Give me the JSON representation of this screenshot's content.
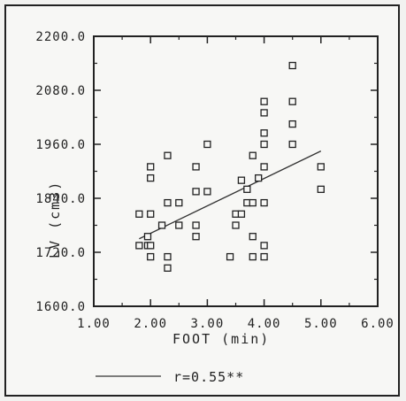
{
  "chart_data": {
    "type": "scatter",
    "xlabel": "FOOT (min)",
    "ylabel": "LV (cm3)",
    "xlim": [
      1.0,
      6.0
    ],
    "ylim": [
      1600.0,
      2200.0
    ],
    "x_ticks": [
      "1.00",
      "2.00",
      "3.00",
      "4.00",
      "5.00",
      "6.00"
    ],
    "y_ticks": [
      "1600.0",
      "1720.0",
      "1840.0",
      "1960.0",
      "2080.0",
      "2200.0"
    ],
    "x_tick_values": [
      1,
      2,
      3,
      4,
      5,
      6
    ],
    "y_tick_values": [
      1600,
      1720,
      1840,
      1960,
      2080,
      2200
    ],
    "grid": false,
    "legend": {
      "label": "r=0.55**",
      "placement": "bottom"
    },
    "regression_line": {
      "x": [
        1.8,
        5.0
      ],
      "y": [
        1750,
        1945
      ]
    },
    "points": [
      {
        "x": 1.8,
        "y": 1805
      },
      {
        "x": 1.8,
        "y": 1735
      },
      {
        "x": 1.95,
        "y": 1735
      },
      {
        "x": 1.95,
        "y": 1755
      },
      {
        "x": 2.0,
        "y": 1805
      },
      {
        "x": 2.0,
        "y": 1885
      },
      {
        "x": 2.0,
        "y": 1910
      },
      {
        "x": 2.0,
        "y": 1735
      },
      {
        "x": 2.0,
        "y": 1710
      },
      {
        "x": 2.2,
        "y": 1780
      },
      {
        "x": 2.3,
        "y": 1935
      },
      {
        "x": 2.3,
        "y": 1830
      },
      {
        "x": 2.3,
        "y": 1710
      },
      {
        "x": 2.3,
        "y": 1685
      },
      {
        "x": 2.5,
        "y": 1830
      },
      {
        "x": 2.5,
        "y": 1780
      },
      {
        "x": 2.8,
        "y": 1910
      },
      {
        "x": 2.8,
        "y": 1855
      },
      {
        "x": 2.8,
        "y": 1780
      },
      {
        "x": 2.8,
        "y": 1755
      },
      {
        "x": 3.0,
        "y": 1960
      },
      {
        "x": 3.0,
        "y": 1855
      },
      {
        "x": 3.4,
        "y": 1710
      },
      {
        "x": 3.5,
        "y": 1805
      },
      {
        "x": 3.5,
        "y": 1780
      },
      {
        "x": 3.6,
        "y": 1880
      },
      {
        "x": 3.6,
        "y": 1805
      },
      {
        "x": 3.7,
        "y": 1860
      },
      {
        "x": 3.7,
        "y": 1830
      },
      {
        "x": 3.8,
        "y": 1935
      },
      {
        "x": 3.8,
        "y": 1830
      },
      {
        "x": 3.8,
        "y": 1755
      },
      {
        "x": 3.8,
        "y": 1710
      },
      {
        "x": 3.9,
        "y": 1885
      },
      {
        "x": 4.0,
        "y": 2055
      },
      {
        "x": 4.0,
        "y": 2030
      },
      {
        "x": 4.0,
        "y": 1985
      },
      {
        "x": 4.0,
        "y": 1960
      },
      {
        "x": 4.0,
        "y": 1910
      },
      {
        "x": 4.0,
        "y": 1830
      },
      {
        "x": 4.0,
        "y": 1735
      },
      {
        "x": 4.0,
        "y": 1710
      },
      {
        "x": 4.5,
        "y": 2135
      },
      {
        "x": 4.5,
        "y": 2055
      },
      {
        "x": 4.5,
        "y": 2005
      },
      {
        "x": 4.5,
        "y": 1960
      },
      {
        "x": 5.0,
        "y": 1910
      },
      {
        "x": 5.0,
        "y": 1860
      }
    ]
  }
}
